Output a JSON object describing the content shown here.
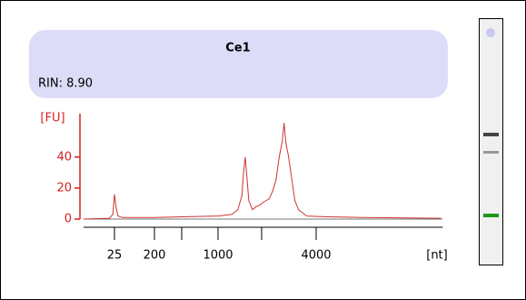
{
  "chart_data": {
    "type": "line",
    "title": "Ce1",
    "annotation": "RIN: 8.90",
    "ylabel": "[FU]",
    "xlabel": "[nt]",
    "color": "#cc3333",
    "axis_color": "#d62020",
    "x": [
      5,
      19,
      23,
      25,
      27,
      30,
      38,
      77,
      200,
      500,
      1000,
      1243,
      1370,
      1460,
      1500,
      1540,
      1580,
      1630,
      1730,
      1830,
      1940,
      2050,
      2200,
      2300,
      2400,
      2500,
      2600,
      2660,
      2730,
      2800,
      2900,
      3050,
      3200,
      3550,
      4600,
      7300,
      19600
    ],
    "values": [
      0,
      0.5,
      3,
      16,
      8,
      2,
      1,
      1,
      1,
      1.5,
      2,
      3,
      6,
      15,
      30,
      40,
      28,
      12,
      6,
      8,
      9,
      11,
      13,
      18,
      25,
      40,
      50,
      62,
      48,
      42,
      30,
      12,
      6,
      2,
      1.5,
      1,
      0.5
    ],
    "xlim": [
      5,
      20000
    ],
    "xticks": [
      25,
      200,
      {
        "value": 500,
        "label": null
      },
      1000,
      {
        "value": 2000,
        "label": null
      },
      4000
    ],
    "ylim": [
      0,
      68
    ],
    "yticks": [
      0,
      20,
      40
    ]
  }
}
